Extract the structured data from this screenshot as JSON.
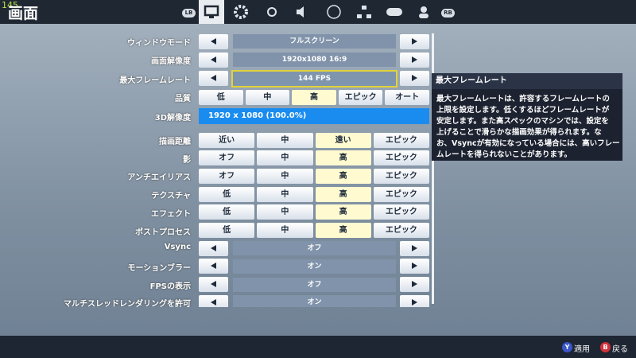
{
  "fps_counter": "145",
  "header": {
    "title": "画面",
    "lb": "LB",
    "rb": "RB"
  },
  "settings": [
    {
      "label": "ウィンドウモード",
      "type": "selector",
      "value": "フルスクリーン"
    },
    {
      "label": "画面解像度",
      "type": "selector",
      "value": "1920x1080 16:9"
    },
    {
      "label": "最大フレームレート",
      "type": "selector",
      "value": "144 FPS",
      "focused": true
    },
    {
      "label": "品質",
      "type": "options",
      "options": [
        "低",
        "中",
        "高",
        "エピック",
        "オート"
      ],
      "selected": 2
    },
    {
      "label": "3D解像度",
      "type": "slider",
      "value": "1920 x 1080 (100.0%)"
    },
    {
      "label": "描画距離",
      "type": "options",
      "options": [
        "近い",
        "中",
        "遠い",
        "エピック"
      ],
      "selected": 2
    },
    {
      "label": "影",
      "type": "options",
      "options": [
        "オフ",
        "中",
        "高",
        "エピック"
      ],
      "selected": 2
    },
    {
      "label": "アンチエイリアス",
      "type": "options",
      "options": [
        "オフ",
        "中",
        "高",
        "エピック"
      ],
      "selected": 2
    },
    {
      "label": "テクスチャ",
      "type": "options",
      "options": [
        "低",
        "中",
        "高",
        "エピック"
      ],
      "selected": 2
    },
    {
      "label": "エフェクト",
      "type": "options",
      "options": [
        "低",
        "中",
        "高",
        "エピック"
      ],
      "selected": 2
    },
    {
      "label": "ポストプロセス",
      "type": "options",
      "options": [
        "低",
        "中",
        "高",
        "エピック"
      ],
      "selected": 2
    },
    {
      "label": "Vsync",
      "type": "selector",
      "value": "オフ"
    },
    {
      "label": "モーションブラー",
      "type": "selector",
      "value": "オン"
    },
    {
      "label": "FPSの表示",
      "type": "selector",
      "value": "オフ"
    },
    {
      "label": "マルチスレッドレンダリングを許可",
      "type": "selector",
      "value": "オン"
    }
  ],
  "tooltip": {
    "title": "最大フレームレート",
    "lines": [
      "最大フレームレートは、許容するフレームレートの",
      "上限を設定します。低くするほどフレームレートが",
      "安定します。また高スペックのマシンでは、設定を",
      "上げることで滑らかな描画効果が得られます。な",
      "お、Vsyncが有効になっている場合には、高いフレー",
      "ムレートを得られないことがあります。"
    ]
  },
  "footer": {
    "apply_key": "Y",
    "apply": "適用",
    "back_key": "B",
    "back": "戻る"
  }
}
